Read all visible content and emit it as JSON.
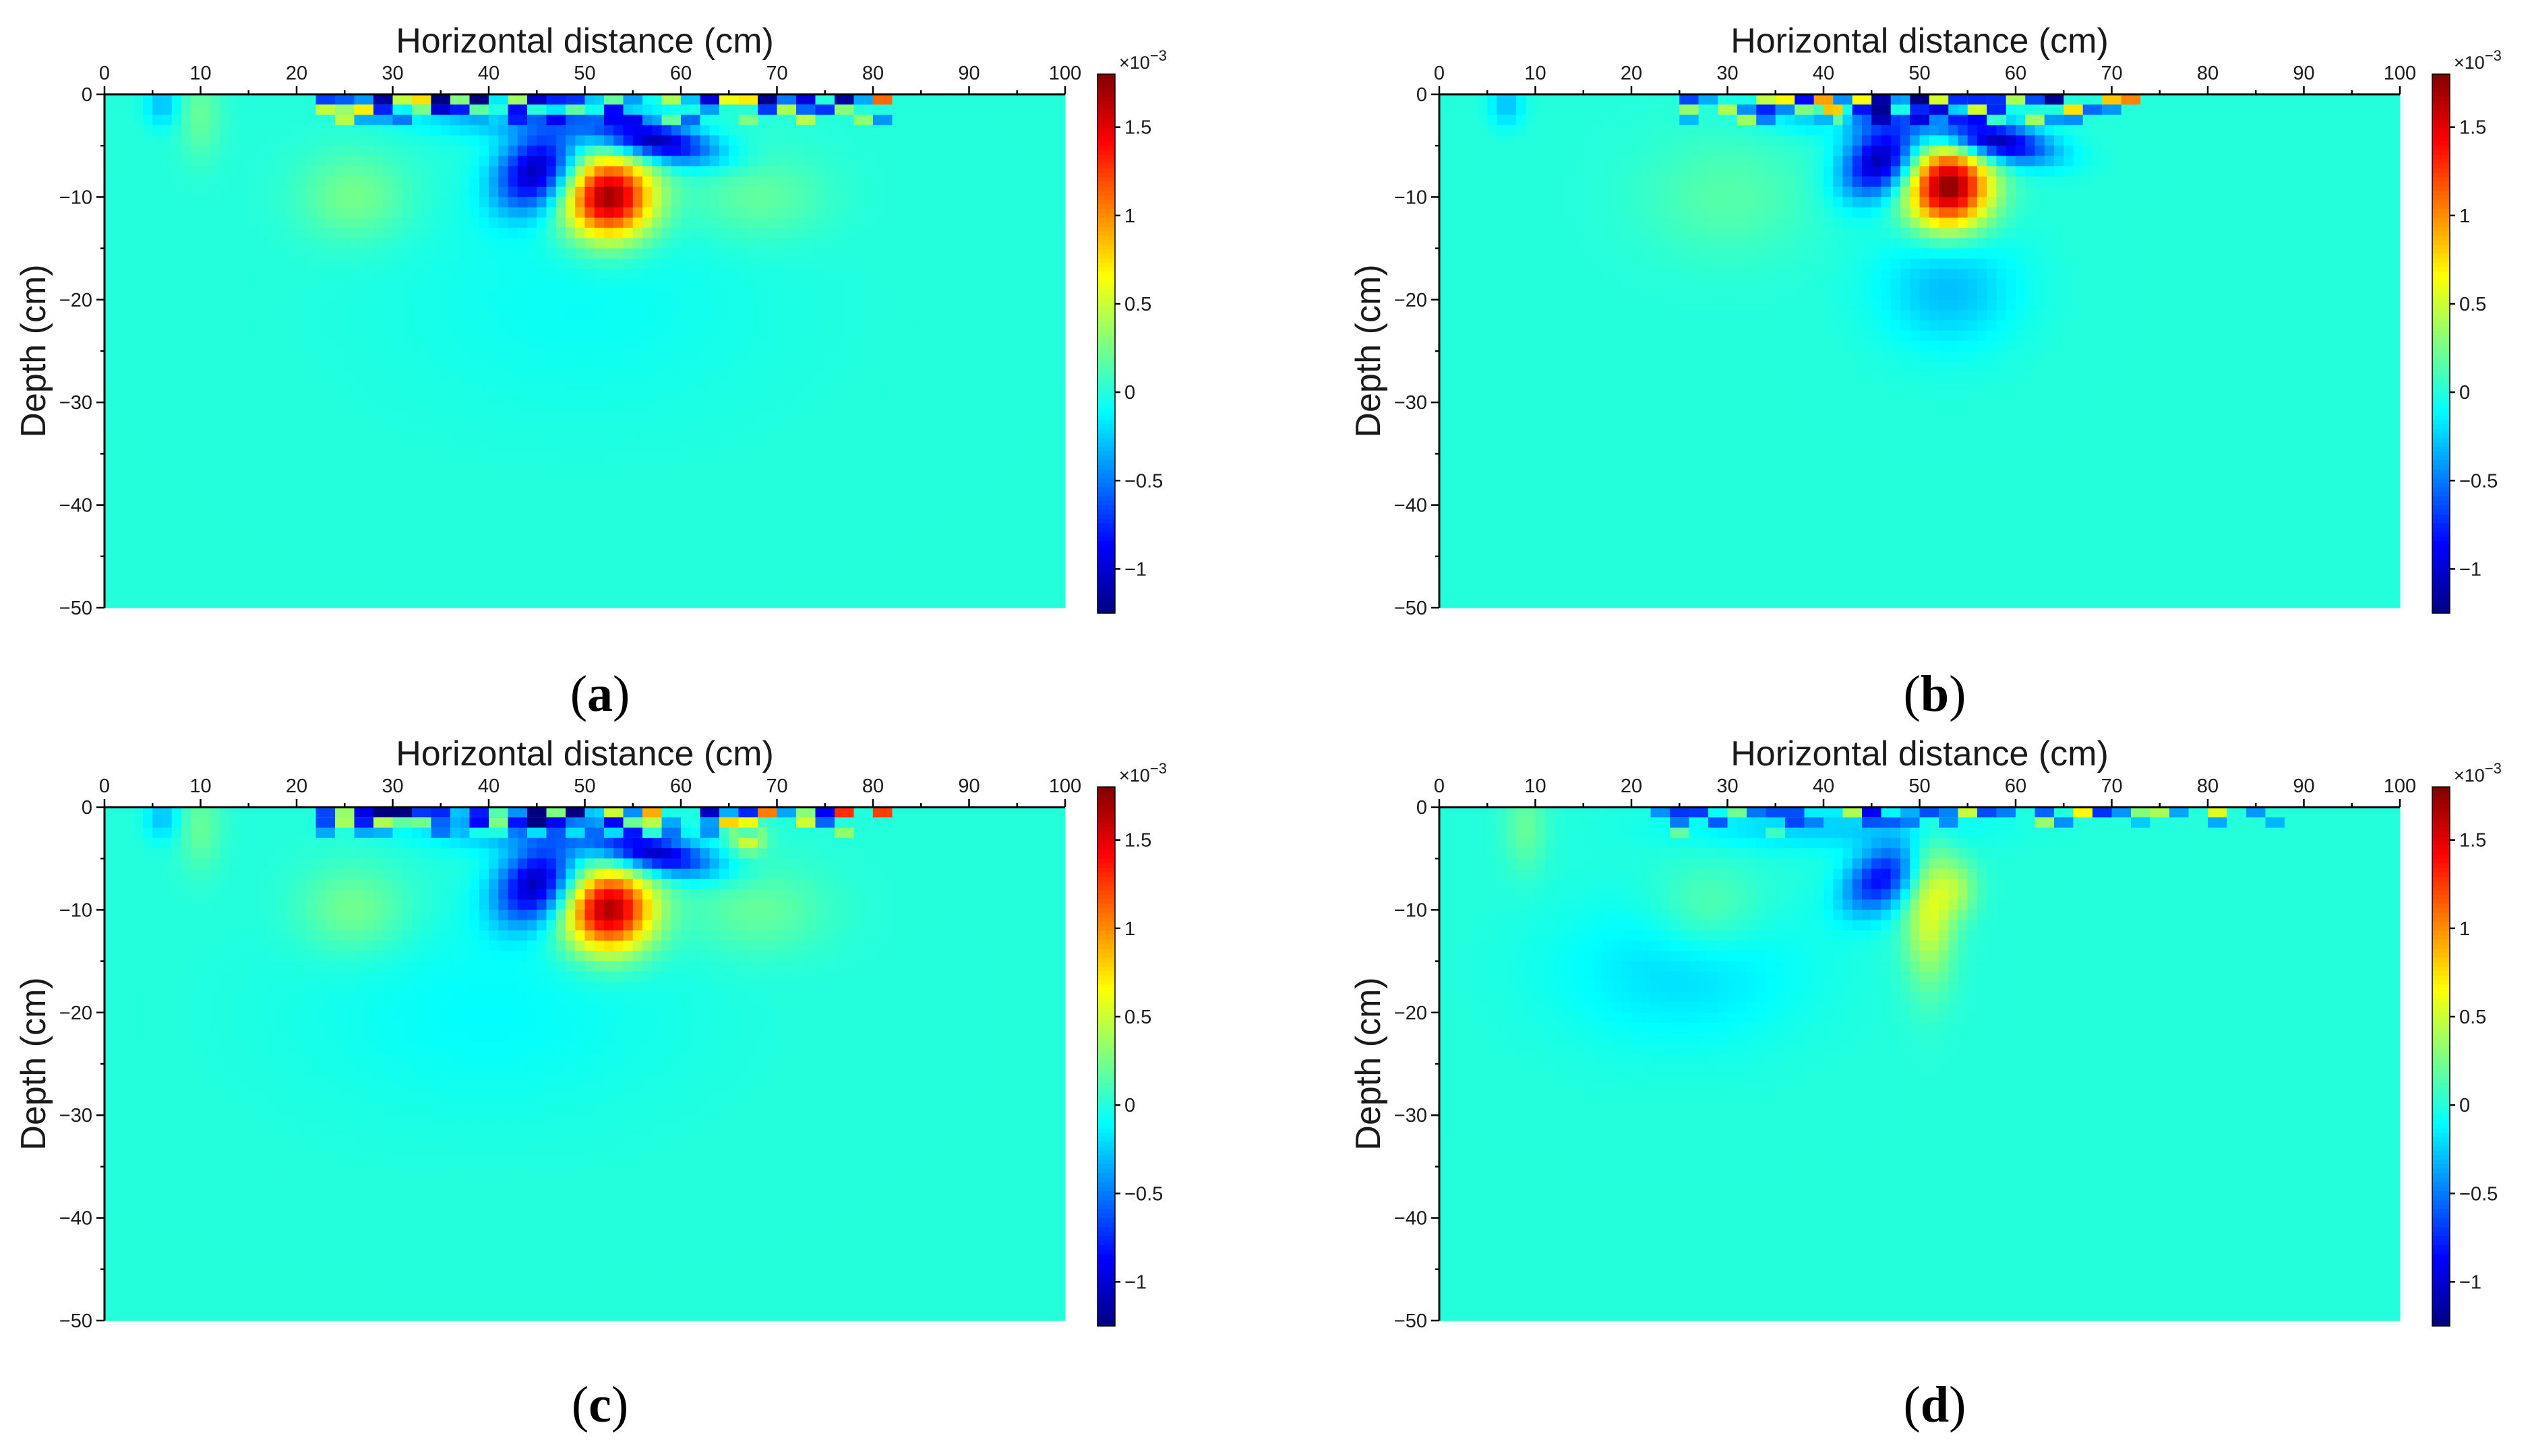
{
  "chart_data": [
    {
      "type": "heatmap",
      "panel": "a",
      "caption_letter": "a",
      "xlabel": "Horizontal distance (cm)",
      "ylabel": "Depth (cm)",
      "xlim": [
        0,
        100
      ],
      "ylim": [
        -50,
        0
      ],
      "x_ticks": [
        0,
        10,
        20,
        30,
        40,
        50,
        60,
        70,
        80,
        90,
        100
      ],
      "y_ticks": [
        0,
        -10,
        -20,
        -30,
        -40,
        -50
      ],
      "colorbar": {
        "min": -1.25,
        "max": 1.8,
        "ticks": [
          -1,
          -0.5,
          0,
          0.5,
          1,
          1.5
        ],
        "tick_labels": [
          "−1",
          "−0.5",
          "0",
          "0.5",
          "1",
          "1.5"
        ],
        "exponent_label": "×10",
        "exponent_power": "−3"
      },
      "background": 0,
      "anomalies": [
        {
          "x": 52.5,
          "y": -10,
          "sx": 3.2,
          "sy": 2.8,
          "v": 1.75
        },
        {
          "x": 45,
          "y": -7.5,
          "sx": 3.2,
          "sy": 2.4,
          "v": -1.1,
          "angle": 35
        },
        {
          "x": 57,
          "y": -4.5,
          "sx": 4.5,
          "sy": 1.3,
          "v": -1.15,
          "angle": -10
        },
        {
          "x": 43,
          "y": -1.5,
          "sx": 7,
          "sy": 1.6,
          "v": -0.5
        },
        {
          "x": 41,
          "y": -1.0,
          "sx": 0.8,
          "sy": 0.8,
          "v": 1.2
        },
        {
          "x": 26,
          "y": -10,
          "sx": 4,
          "sy": 3,
          "v": 0.25
        },
        {
          "x": 68,
          "y": -10,
          "sx": 5,
          "sy": 3,
          "v": 0.2
        },
        {
          "x": 50,
          "y": -20,
          "sx": 14,
          "sy": 8,
          "v": -0.08
        },
        {
          "x": 10,
          "y": -2,
          "sx": 1.5,
          "sy": 3,
          "v": 0.2
        },
        {
          "x": 6,
          "y": -1,
          "sx": 1.2,
          "sy": 1.5,
          "v": -0.3
        }
      ],
      "surface_cells": {
        "x_start": 22,
        "x_end": 82,
        "seed": 11,
        "amplitude": 1.3
      }
    },
    {
      "type": "heatmap",
      "panel": "b",
      "caption_letter": "b",
      "xlabel": "Horizontal distance (cm)",
      "ylabel": "Depth (cm)",
      "xlim": [
        0,
        100
      ],
      "ylim": [
        -50,
        0
      ],
      "x_ticks": [
        0,
        10,
        20,
        30,
        40,
        50,
        60,
        70,
        80,
        90,
        100
      ],
      "y_ticks": [
        0,
        -10,
        -20,
        -30,
        -40,
        -50
      ],
      "colorbar": {
        "min": -1.25,
        "max": 1.8,
        "ticks": [
          -1,
          -0.5,
          0,
          0.5,
          1,
          1.5
        ],
        "tick_labels": [
          "−1",
          "−0.5",
          "0",
          "0.5",
          "1",
          "1.5"
        ],
        "exponent_label": "×10",
        "exponent_power": "−3"
      },
      "background": 0,
      "anomalies": [
        {
          "x": 53,
          "y": -9,
          "sx": 3.0,
          "sy": 2.8,
          "v": 1.8
        },
        {
          "x": 46,
          "y": -6.5,
          "sx": 3.0,
          "sy": 2.2,
          "v": -1.15,
          "angle": 35
        },
        {
          "x": 57.5,
          "y": -4.5,
          "sx": 4.2,
          "sy": 1.3,
          "v": -1.2,
          "angle": -10
        },
        {
          "x": 44,
          "y": -1.5,
          "sx": 6,
          "sy": 1.5,
          "v": -0.5
        },
        {
          "x": 41,
          "y": -1.2,
          "sx": 1.0,
          "sy": 1.0,
          "v": 1.5
        },
        {
          "x": 53,
          "y": -19,
          "sx": 5,
          "sy": 4,
          "v": -0.3
        },
        {
          "x": 30,
          "y": -10,
          "sx": 6,
          "sy": 4,
          "v": 0.15
        },
        {
          "x": 7,
          "y": -1,
          "sx": 1.2,
          "sy": 1.5,
          "v": -0.3
        }
      ],
      "surface_cells": {
        "x_start": 25,
        "x_end": 72,
        "seed": 23,
        "amplitude": 1.3
      }
    },
    {
      "type": "heatmap",
      "panel": "c",
      "caption_letter": "c",
      "xlabel": "Horizontal distance (cm)",
      "ylabel": "Depth (cm)",
      "xlim": [
        0,
        100
      ],
      "ylim": [
        -50,
        0
      ],
      "x_ticks": [
        0,
        10,
        20,
        30,
        40,
        50,
        60,
        70,
        80,
        90,
        100
      ],
      "y_ticks": [
        0,
        -10,
        -20,
        -30,
        -40,
        -50
      ],
      "colorbar": {
        "min": -1.25,
        "max": 1.8,
        "ticks": [
          -1,
          -0.5,
          0,
          0.5,
          1,
          1.5
        ],
        "tick_labels": [
          "−1",
          "−0.5",
          "0",
          "0.5",
          "1",
          "1.5"
        ],
        "exponent_label": "×10",
        "exponent_power": "−3"
      },
      "background": 0,
      "anomalies": [
        {
          "x": 52.5,
          "y": -10,
          "sx": 3.2,
          "sy": 2.8,
          "v": 1.7
        },
        {
          "x": 45,
          "y": -7.5,
          "sx": 3.2,
          "sy": 2.4,
          "v": -1.1,
          "angle": 35
        },
        {
          "x": 57,
          "y": -4.5,
          "sx": 4.5,
          "sy": 1.3,
          "v": -1.1,
          "angle": -10
        },
        {
          "x": 43,
          "y": -1.5,
          "sx": 7,
          "sy": 1.6,
          "v": -0.5
        },
        {
          "x": 67,
          "y": -3,
          "sx": 1.2,
          "sy": 1.0,
          "v": 0.6
        },
        {
          "x": 26,
          "y": -10,
          "sx": 4,
          "sy": 3,
          "v": 0.25
        },
        {
          "x": 68,
          "y": -10,
          "sx": 5,
          "sy": 3,
          "v": 0.2
        },
        {
          "x": 40,
          "y": -20,
          "sx": 14,
          "sy": 7,
          "v": -0.1
        },
        {
          "x": 10,
          "y": -2,
          "sx": 1.5,
          "sy": 3,
          "v": 0.2
        },
        {
          "x": 6,
          "y": -1,
          "sx": 1.2,
          "sy": 1.5,
          "v": -0.3
        }
      ],
      "surface_cells": {
        "x_start": 22,
        "x_end": 82,
        "seed": 37,
        "amplitude": 1.3
      }
    },
    {
      "type": "heatmap",
      "panel": "d",
      "caption_letter": "d",
      "xlabel": "Horizontal distance (cm)",
      "ylabel": "Depth (cm)",
      "xlim": [
        0,
        100
      ],
      "ylim": [
        -50,
        0
      ],
      "x_ticks": [
        0,
        10,
        20,
        30,
        40,
        50,
        60,
        70,
        80,
        90,
        100
      ],
      "y_ticks": [
        0,
        -10,
        -20,
        -30,
        -40,
        -50
      ],
      "colorbar": {
        "min": -1.25,
        "max": 1.8,
        "ticks": [
          -1,
          -0.5,
          0,
          0.5,
          1,
          1.5
        ],
        "tick_labels": [
          "−1",
          "−0.5",
          "0",
          "0.5",
          "1",
          "1.5"
        ],
        "exponent_label": "×10",
        "exponent_power": "−3"
      },
      "background": 0,
      "anomalies": [
        {
          "x": 46,
          "y": -7,
          "sx": 3.0,
          "sy": 2.0,
          "v": -0.85,
          "angle": 35
        },
        {
          "x": 51,
          "y": -10,
          "sx": 1.8,
          "sy": 5,
          "v": 0.55
        },
        {
          "x": 54,
          "y": -8,
          "sx": 1.5,
          "sy": 2,
          "v": 0.3
        },
        {
          "x": 25,
          "y": -16,
          "sx": 9,
          "sy": 5,
          "v": -0.2
        },
        {
          "x": 28,
          "y": -10,
          "sx": 4,
          "sy": 3,
          "v": 0.2
        },
        {
          "x": 40,
          "y": -2,
          "sx": 10,
          "sy": 1.5,
          "v": -0.25
        },
        {
          "x": 9,
          "y": -2,
          "sx": 1.5,
          "sy": 3,
          "v": 0.2
        }
      ],
      "surface_cells": {
        "x_start": 22,
        "x_end": 88,
        "seed": 53,
        "amplitude": 0.8
      }
    }
  ]
}
